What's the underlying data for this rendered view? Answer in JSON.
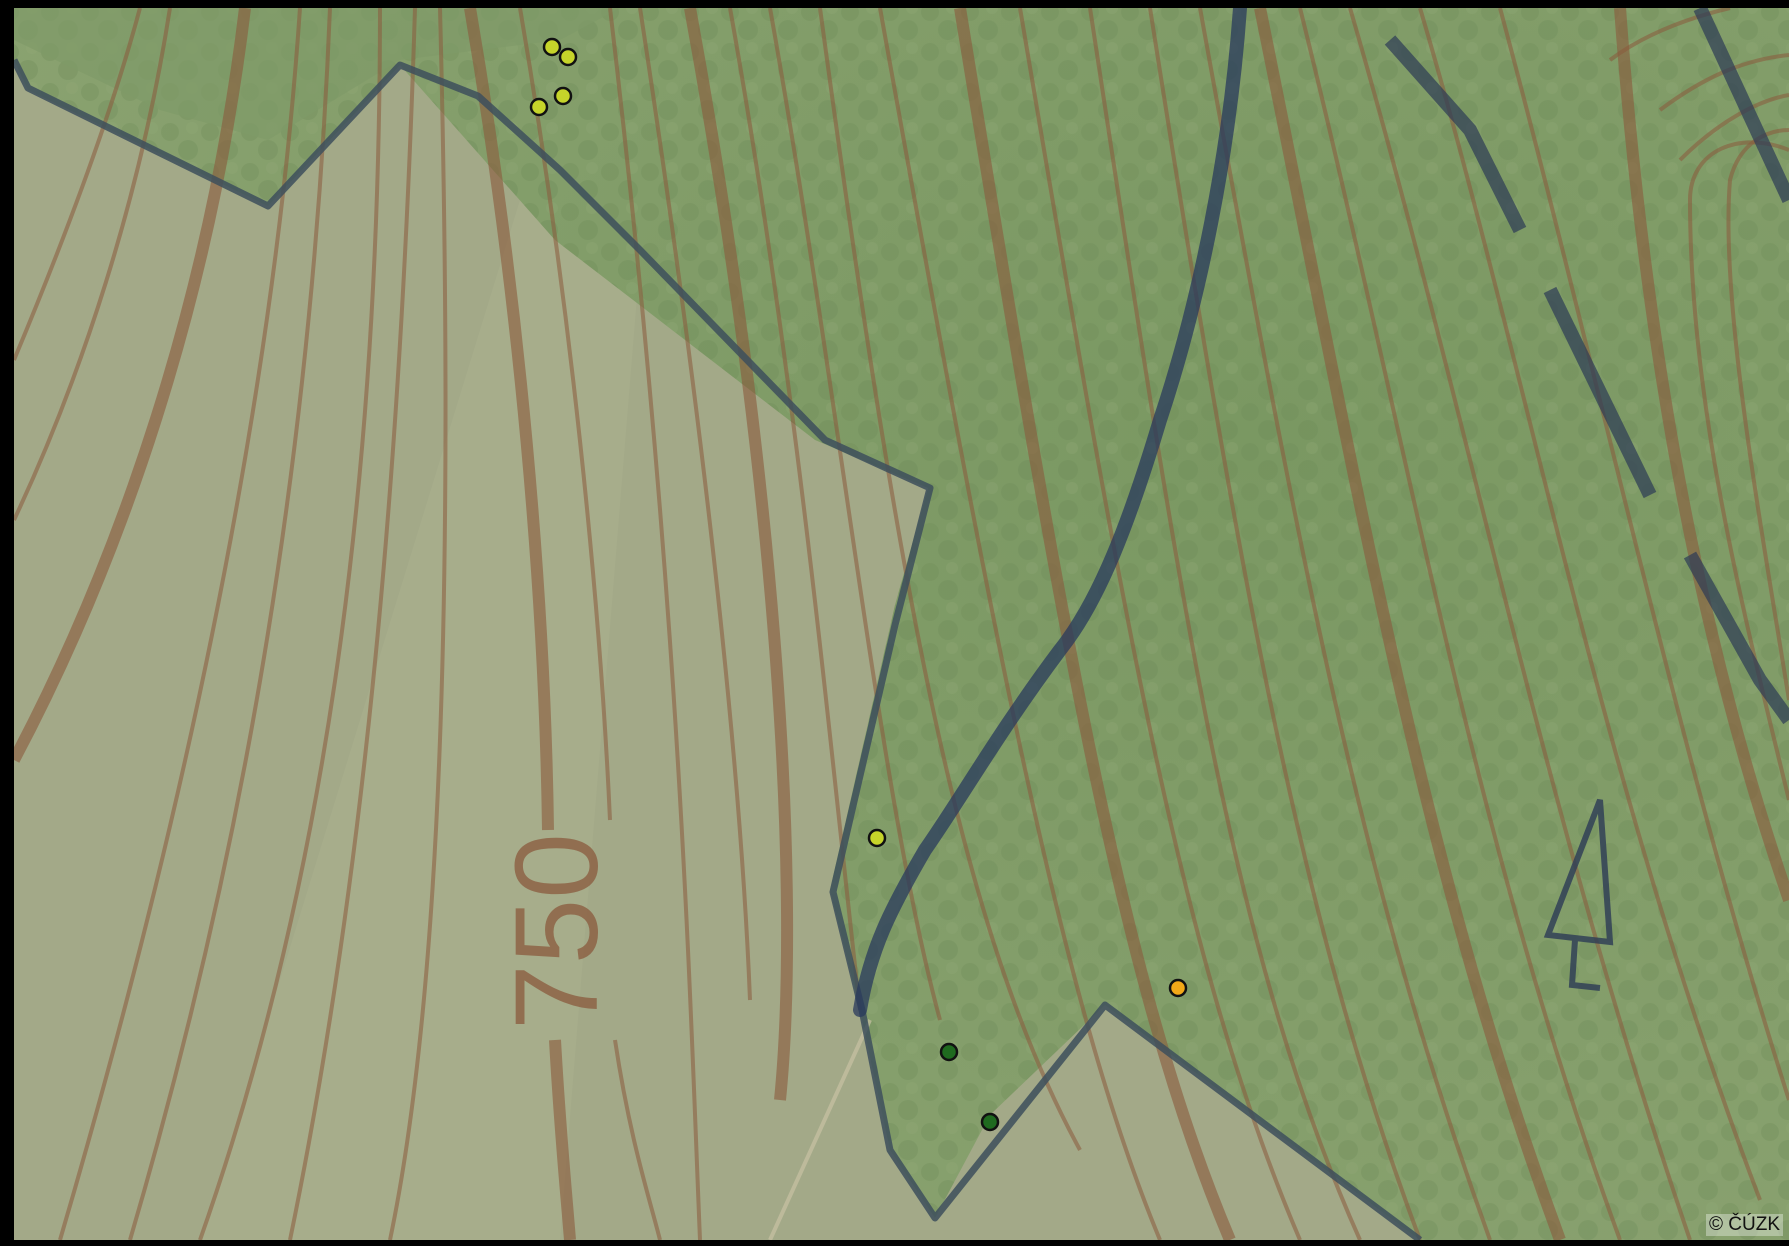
{
  "map": {
    "elevation_label": "750",
    "copyright": "© ČÚZK",
    "colors": {
      "meadow": "#a3a988",
      "forest": "#7e9a66",
      "contour": "#8a5a3c",
      "boundary": "#3d4f5c",
      "road": "#283a5c"
    },
    "markers": [
      {
        "category": "yellow-green",
        "color": "#c6d42a"
      },
      {
        "category": "yellow-green",
        "color": "#c6d42a"
      },
      {
        "category": "yellow-green",
        "color": "#c6d42a"
      },
      {
        "category": "yellow-green",
        "color": "#c6d42a"
      },
      {
        "category": "yellow-green",
        "color": "#c6d42a"
      },
      {
        "category": "orange",
        "color": "#f2a818"
      },
      {
        "category": "dark-green",
        "color": "#1f6a1f"
      },
      {
        "category": "dark-green",
        "color": "#1f6a1f"
      }
    ],
    "symbols": [
      "coniferous-tree-icon"
    ]
  }
}
